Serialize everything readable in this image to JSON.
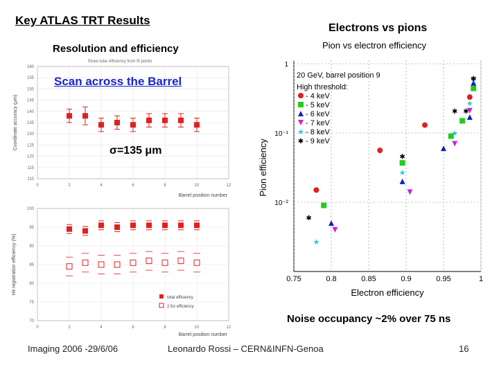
{
  "slide": {
    "title": "Key ATLAS TRT Results",
    "subtitle_left": "Resolution and efficiency",
    "subtitle_right": "Electrons vs pions",
    "scan_label": "Scan across the Barrel",
    "sigma_label": "σ=135 μm",
    "noise_note": "Noise occupancy ~2% over 75 ns",
    "footer_left": "Imaging 2006 -29/6/06",
    "footer_center": "Leonardo Rossi – CERN&INFN-Genoa",
    "page_number": "16"
  },
  "colors": {
    "accent_blue": "#1a24c8",
    "marker_red": "#e02020",
    "green": "#22cc22",
    "blue": "#1020c0",
    "magenta": "#cc22dd",
    "cyan": "#22cccc",
    "black": "#000000"
  },
  "chart_data": [
    {
      "type": "scatter",
      "title": "Straw tube efficiency from fit points",
      "xlabel": "Barrel position number",
      "ylabel": "Coordinate accuracy (μm)",
      "xlim": [
        0,
        12
      ],
      "ylim": [
        110,
        160
      ],
      "xticks": [
        "0",
        "2",
        "4",
        "6",
        "8",
        "10",
        "12"
      ],
      "yticks": [
        "110",
        "115",
        "120",
        "125",
        "130",
        "135",
        "140",
        "145",
        "150",
        "155",
        "160"
      ],
      "series": [
        {
          "values": [
            [
              2,
              138
            ],
            [
              3,
              138
            ],
            [
              4,
              134
            ],
            [
              5,
              135
            ],
            [
              6,
              134
            ],
            [
              7,
              136
            ],
            [
              8,
              136
            ],
            [
              9,
              136
            ],
            [
              10,
              134
            ]
          ],
          "errors": [
            3,
            4,
            3,
            3,
            3,
            3,
            3,
            3,
            3
          ]
        }
      ]
    },
    {
      "type": "scatter",
      "xlabel": "Barrel position number",
      "ylabel": "Hit registration efficiency (%)",
      "xlim": [
        0,
        12
      ],
      "ylim": [
        70,
        100
      ],
      "xticks": [
        "0",
        "2",
        "4",
        "6",
        "8",
        "10",
        "12"
      ],
      "yticks": [
        "70",
        "75",
        "80",
        "85",
        "90",
        "95",
        "100"
      ],
      "legend_position": "bottom-right",
      "series": [
        {
          "name": "total efficiency",
          "values": [
            [
              2,
              94.5
            ],
            [
              3,
              94
            ],
            [
              4,
              95.5
            ],
            [
              5,
              95
            ],
            [
              6,
              95.5
            ],
            [
              7,
              95.5
            ],
            [
              8,
              95.5
            ],
            [
              9,
              95.5
            ],
            [
              10,
              95.5
            ]
          ]
        },
        {
          "name": "2.5σ efficiency",
          "values": [
            [
              2,
              84.5
            ],
            [
              3,
              85.5
            ],
            [
              4,
              85
            ],
            [
              5,
              85
            ],
            [
              6,
              85.5
            ],
            [
              7,
              86
            ],
            [
              8,
              85.5
            ],
            [
              9,
              86
            ],
            [
              10,
              85.5
            ]
          ]
        }
      ]
    },
    {
      "type": "scatter",
      "title": "Pion vs electron efficiency",
      "annotation_1": "20 GeV, barrel position 9",
      "annotation_2": "High threshold:",
      "xlabel": "Electron efficiency",
      "ylabel": "Pion efficiency",
      "xscale": "linear",
      "yscale": "log",
      "xlim": [
        0.75,
        1.0
      ],
      "ylim": [
        0.001,
        1
      ],
      "xticks": [
        "0.75",
        "0.8",
        "0.85",
        "0.9",
        "0.95",
        "1"
      ],
      "yticks": [
        "1",
        "10⁻¹",
        "10⁻²"
      ],
      "legend_position": "top-left",
      "series": [
        {
          "name": "- 4 keV",
          "marker": "circle",
          "color": "#e02020",
          "values": [
            [
              0.78,
              0.015
            ],
            [
              0.865,
              0.056
            ],
            [
              0.925,
              0.13
            ],
            [
              0.985,
              0.33
            ]
          ]
        },
        {
          "name": "- 5 keV",
          "marker": "square",
          "color": "#22cc22",
          "values": [
            [
              0.79,
              0.009
            ],
            [
              0.895,
              0.037
            ],
            [
              0.96,
              0.09
            ],
            [
              0.975,
              0.15
            ],
            [
              0.99,
              0.44
            ]
          ]
        },
        {
          "name": "- 6 keV",
          "marker": "triangle-up",
          "color": "#1020c0",
          "values": [
            [
              0.8,
              0.005
            ],
            [
              0.895,
              0.02
            ],
            [
              0.95,
              0.06
            ],
            [
              0.985,
              0.17
            ],
            [
              0.99,
              0.53
            ]
          ]
        },
        {
          "name": "- 7 keV",
          "marker": "triangle-down",
          "color": "#cc22dd",
          "values": [
            [
              0.805,
              0.004
            ],
            [
              0.905,
              0.014
            ],
            [
              0.965,
              0.07
            ],
            [
              0.985,
              0.21
            ],
            [
              0.99,
              0.58
            ]
          ]
        },
        {
          "name": "- 8 keV",
          "marker": "star",
          "color": "#22cccc",
          "values": [
            [
              0.78,
              0.0027
            ],
            [
              0.895,
              0.027
            ],
            [
              0.965,
              0.1
            ],
            [
              0.985,
              0.27
            ],
            [
              0.99,
              0.6
            ]
          ]
        },
        {
          "name": "- 9 keV",
          "marker": "cross",
          "color": "#000000",
          "values": [
            [
              0.77,
              0.006
            ],
            [
              0.895,
              0.046
            ],
            [
              0.965,
              0.21
            ],
            [
              0.98,
              0.21
            ],
            [
              0.99,
              0.62
            ]
          ]
        }
      ]
    }
  ]
}
